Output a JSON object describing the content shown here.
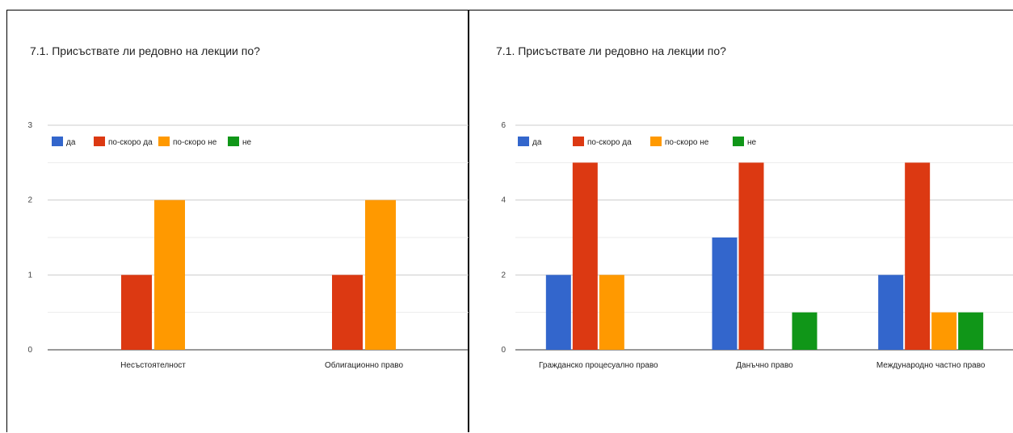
{
  "colors": {
    "da": "#3366cc",
    "po_skoro_da": "#dc3912",
    "po_skoro_ne": "#ff9900",
    "ne": "#109618"
  },
  "chart_data": [
    {
      "type": "bar",
      "title": "7.1. Присъствате ли редовно на лекции по?",
      "categories": [
        "Несъстоятелност",
        "Облигационно право"
      ],
      "legend": [
        "да",
        "по-скоро да",
        "по-скоро не",
        "не"
      ],
      "legend_placement": "top-left",
      "series": [
        {
          "name": "да",
          "values": [
            0,
            0
          ]
        },
        {
          "name": "по-скоро да",
          "values": [
            1,
            1
          ]
        },
        {
          "name": "по-скоро не",
          "values": [
            2,
            2
          ]
        },
        {
          "name": "не",
          "values": [
            0,
            0
          ]
        }
      ],
      "yticks": [
        "0",
        "1",
        "2",
        "3"
      ],
      "ylim": [
        0,
        3
      ],
      "grid": true
    },
    {
      "type": "bar",
      "title": "7.1. Присъствате ли редовно на лекции по?",
      "categories": [
        "Гражданско процесуално право",
        "Данъчно право",
        "Международно частно право"
      ],
      "legend": [
        "да",
        "по-скоро да",
        "по-скоро не",
        "не"
      ],
      "legend_placement": "top-left",
      "series": [
        {
          "name": "да",
          "values": [
            2,
            3,
            2
          ]
        },
        {
          "name": "по-скоро да",
          "values": [
            5,
            5,
            5
          ]
        },
        {
          "name": "по-скоро не",
          "values": [
            2,
            0,
            1
          ]
        },
        {
          "name": "не",
          "values": [
            0,
            1,
            1
          ]
        }
      ],
      "yticks": [
        "0",
        "2",
        "4",
        "6"
      ],
      "ylim": [
        0,
        6
      ],
      "grid": true
    }
  ]
}
